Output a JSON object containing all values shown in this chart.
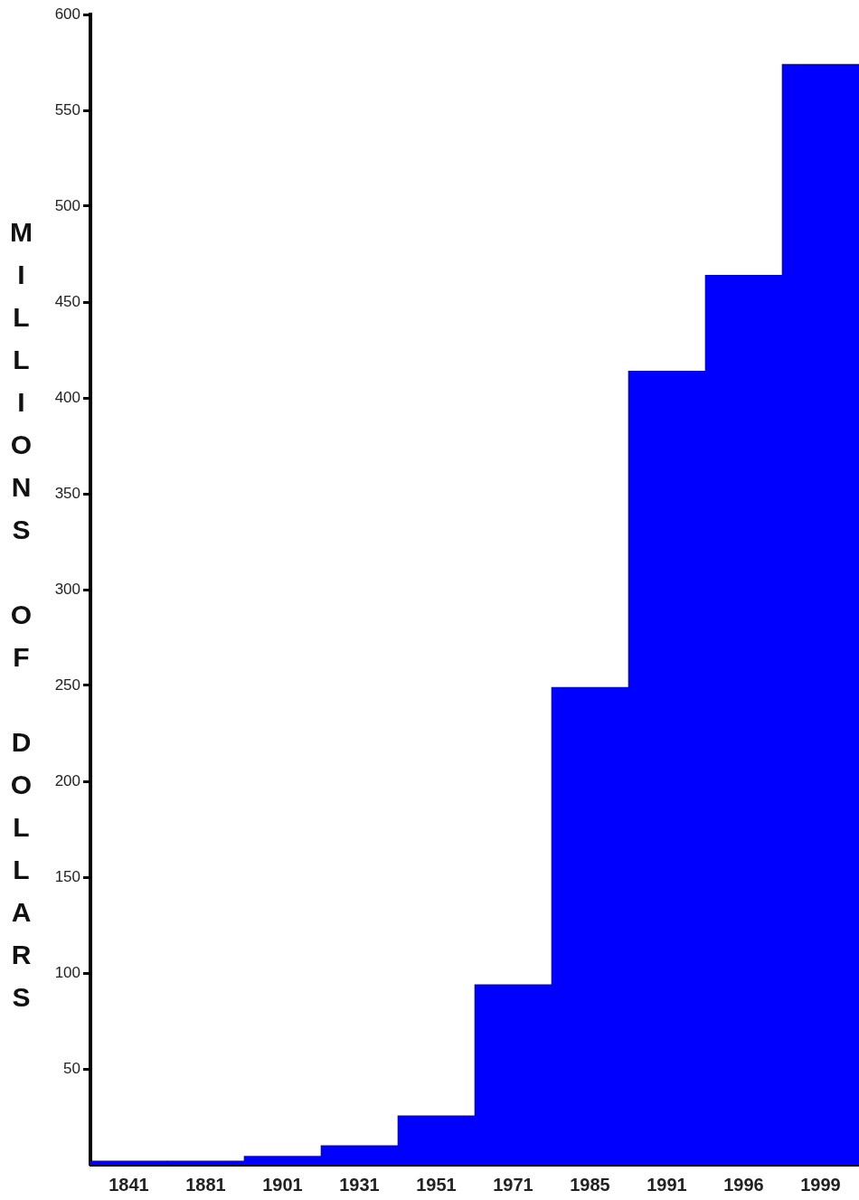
{
  "chart_data": {
    "type": "bar",
    "ylabel": "MILLIONS OF DOLLARS",
    "categories": [
      "1841",
      "1881",
      "1901",
      "1931",
      "1951",
      "1971",
      "1985",
      "1991",
      "1996",
      "1999"
    ],
    "values": [
      2,
      2,
      4.5,
      10,
      25.5,
      94,
      249,
      414,
      464,
      574
    ],
    "color": "#0000ff",
    "ylim": [
      0,
      600
    ],
    "yticks": [
      50,
      100,
      150,
      200,
      250,
      300,
      350,
      400,
      450,
      500,
      550,
      600
    ]
  }
}
